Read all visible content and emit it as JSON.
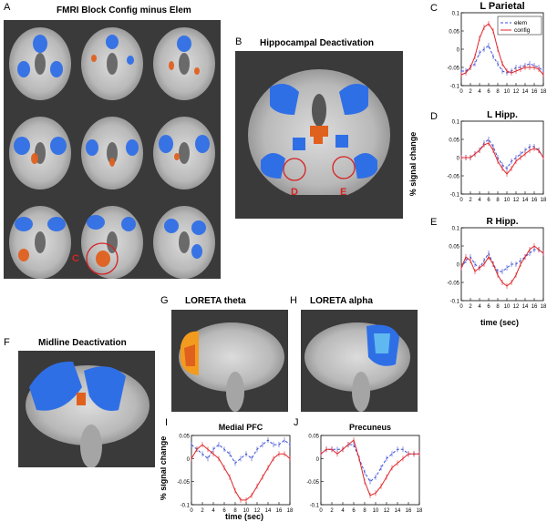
{
  "figure": {
    "panel_a": {
      "letter": "A",
      "title": "FMRI Block Config minus Elem",
      "roi_label": "C"
    },
    "panel_b": {
      "letter": "B",
      "title": "Hippocampal Deactivation",
      "roi_left": "D",
      "roi_right": "E"
    },
    "panel_f": {
      "letter": "F",
      "title": "Midline Deactivation"
    },
    "panel_g": {
      "letter": "G",
      "title": "LORETA theta"
    },
    "panel_h": {
      "letter": "H",
      "title": "LORETA alpha"
    },
    "right_ylabel": "% signal change",
    "right_xlabel": "time (sec)",
    "bottom_ylabel": "% signal change",
    "bottom_xlabel": "time (sec)",
    "legend": {
      "elem": "elem",
      "config": "config"
    },
    "colors": {
      "elem": "#3b4fd6",
      "config": "#e0262a",
      "activation": "#e0601e",
      "deactivation": "#2f6fe6",
      "brain_bg": "#3a3a3a"
    }
  },
  "chart_data": [
    {
      "type": "line",
      "panel": "C",
      "title": "L Parietal",
      "x": [
        0,
        1,
        2,
        3,
        4,
        5,
        6,
        7,
        8,
        9,
        10,
        11,
        12,
        13,
        14,
        15,
        16,
        17,
        18
      ],
      "xticks": [
        0,
        2,
        4,
        6,
        8,
        10,
        12,
        14,
        16,
        18
      ],
      "ylim": [
        -0.1,
        0.1
      ],
      "yticks": [
        "0.1",
        "0.05",
        "0",
        "-0.05",
        "-0.1"
      ],
      "series": [
        {
          "name": "elem",
          "values": [
            -0.06,
            -0.06,
            -0.05,
            -0.04,
            -0.01,
            0.0,
            0.01,
            -0.02,
            -0.04,
            -0.06,
            -0.065,
            -0.06,
            -0.05,
            -0.05,
            -0.045,
            -0.04,
            -0.045,
            -0.05,
            -0.06
          ]
        },
        {
          "name": "config",
          "values": [
            -0.07,
            -0.065,
            -0.05,
            -0.02,
            0.03,
            0.06,
            0.07,
            0.05,
            0.0,
            -0.04,
            -0.06,
            -0.065,
            -0.06,
            -0.055,
            -0.05,
            -0.05,
            -0.05,
            -0.055,
            -0.07
          ]
        }
      ]
    },
    {
      "type": "line",
      "panel": "D",
      "title": "L Hipp.",
      "x": [
        0,
        1,
        2,
        3,
        4,
        5,
        6,
        7,
        8,
        9,
        10,
        11,
        12,
        13,
        14,
        15,
        16,
        17,
        18
      ],
      "xticks": [
        0,
        2,
        4,
        6,
        8,
        10,
        12,
        14,
        16,
        18
      ],
      "ylim": [
        -0.1,
        0.1
      ],
      "yticks": [
        "0.1",
        "0.05",
        "0",
        "-0.05",
        "-0.1"
      ],
      "series": [
        {
          "name": "elem",
          "values": [
            0.0,
            0.0,
            0.0,
            0.01,
            0.02,
            0.04,
            0.05,
            0.03,
            0.0,
            -0.02,
            -0.03,
            -0.01,
            0.0,
            0.01,
            0.02,
            0.03,
            0.03,
            0.02,
            0.0
          ]
        },
        {
          "name": "config",
          "values": [
            0.0,
            0.0,
            0.0,
            0.01,
            0.02,
            0.035,
            0.04,
            0.02,
            -0.01,
            -0.03,
            -0.045,
            -0.03,
            -0.01,
            0.0,
            0.01,
            0.02,
            0.025,
            0.02,
            0.0
          ]
        }
      ]
    },
    {
      "type": "line",
      "panel": "E",
      "title": "R Hipp.",
      "x": [
        0,
        1,
        2,
        3,
        4,
        5,
        6,
        7,
        8,
        9,
        10,
        11,
        12,
        13,
        14,
        15,
        16,
        17,
        18
      ],
      "xticks": [
        0,
        2,
        4,
        6,
        8,
        10,
        12,
        14,
        16,
        18
      ],
      "ylim": [
        -0.1,
        0.1
      ],
      "yticks": [
        "0.1",
        "0.05",
        "0",
        "-0.05",
        "-0.1"
      ],
      "series": [
        {
          "name": "elem",
          "values": [
            -0.01,
            0.01,
            0.02,
            0.0,
            -0.01,
            0.01,
            0.03,
            0.0,
            -0.02,
            -0.02,
            -0.01,
            0.0,
            0.0,
            0.01,
            0.02,
            0.03,
            0.04,
            0.04,
            0.03
          ]
        },
        {
          "name": "config",
          "values": [
            -0.01,
            0.02,
            0.01,
            -0.02,
            -0.01,
            0.0,
            0.02,
            0.0,
            -0.03,
            -0.05,
            -0.06,
            -0.05,
            -0.03,
            0.0,
            0.02,
            0.04,
            0.05,
            0.04,
            0.03
          ]
        }
      ]
    },
    {
      "type": "line",
      "panel": "I",
      "title": "Medial PFC",
      "x": [
        0,
        1,
        2,
        3,
        4,
        5,
        6,
        7,
        8,
        9,
        10,
        11,
        12,
        13,
        14,
        15,
        16,
        17,
        18
      ],
      "xticks": [
        0,
        2,
        4,
        6,
        8,
        10,
        12,
        14,
        16,
        18
      ],
      "ylim": [
        -0.1,
        0.05
      ],
      "yticks": [
        "0.05",
        "0",
        "-0.05",
        "-0.1"
      ],
      "series": [
        {
          "name": "elem",
          "values": [
            0.03,
            0.02,
            0.01,
            0.0,
            0.02,
            0.03,
            0.02,
            0.01,
            -0.01,
            0.0,
            0.01,
            0.0,
            0.02,
            0.03,
            0.04,
            0.03,
            0.03,
            0.04,
            0.03
          ]
        },
        {
          "name": "config",
          "values": [
            0.0,
            0.02,
            0.03,
            0.02,
            0.01,
            0.0,
            -0.02,
            -0.04,
            -0.07,
            -0.09,
            -0.09,
            -0.08,
            -0.06,
            -0.04,
            -0.02,
            0.0,
            0.01,
            0.01,
            0.0
          ]
        }
      ]
    },
    {
      "type": "line",
      "panel": "J",
      "title": "Precuneus",
      "x": [
        0,
        1,
        2,
        3,
        4,
        5,
        6,
        7,
        8,
        9,
        10,
        11,
        12,
        13,
        14,
        15,
        16,
        17,
        18
      ],
      "xticks": [
        0,
        2,
        4,
        6,
        8,
        10,
        12,
        14,
        16,
        18
      ],
      "ylim": [
        -0.1,
        0.05
      ],
      "yticks": [
        "0.05",
        "0",
        "-0.05",
        "-0.1"
      ],
      "series": [
        {
          "name": "elem",
          "values": [
            0.01,
            0.02,
            0.02,
            0.02,
            0.02,
            0.03,
            0.03,
            0.0,
            -0.03,
            -0.05,
            -0.04,
            -0.02,
            0.0,
            0.01,
            0.02,
            0.02,
            0.01,
            0.01,
            0.01
          ]
        },
        {
          "name": "config",
          "values": [
            0.01,
            0.02,
            0.02,
            0.01,
            0.02,
            0.03,
            0.04,
            0.0,
            -0.05,
            -0.08,
            -0.075,
            -0.06,
            -0.04,
            -0.02,
            -0.01,
            0.0,
            0.01,
            0.01,
            0.01
          ]
        }
      ]
    }
  ]
}
